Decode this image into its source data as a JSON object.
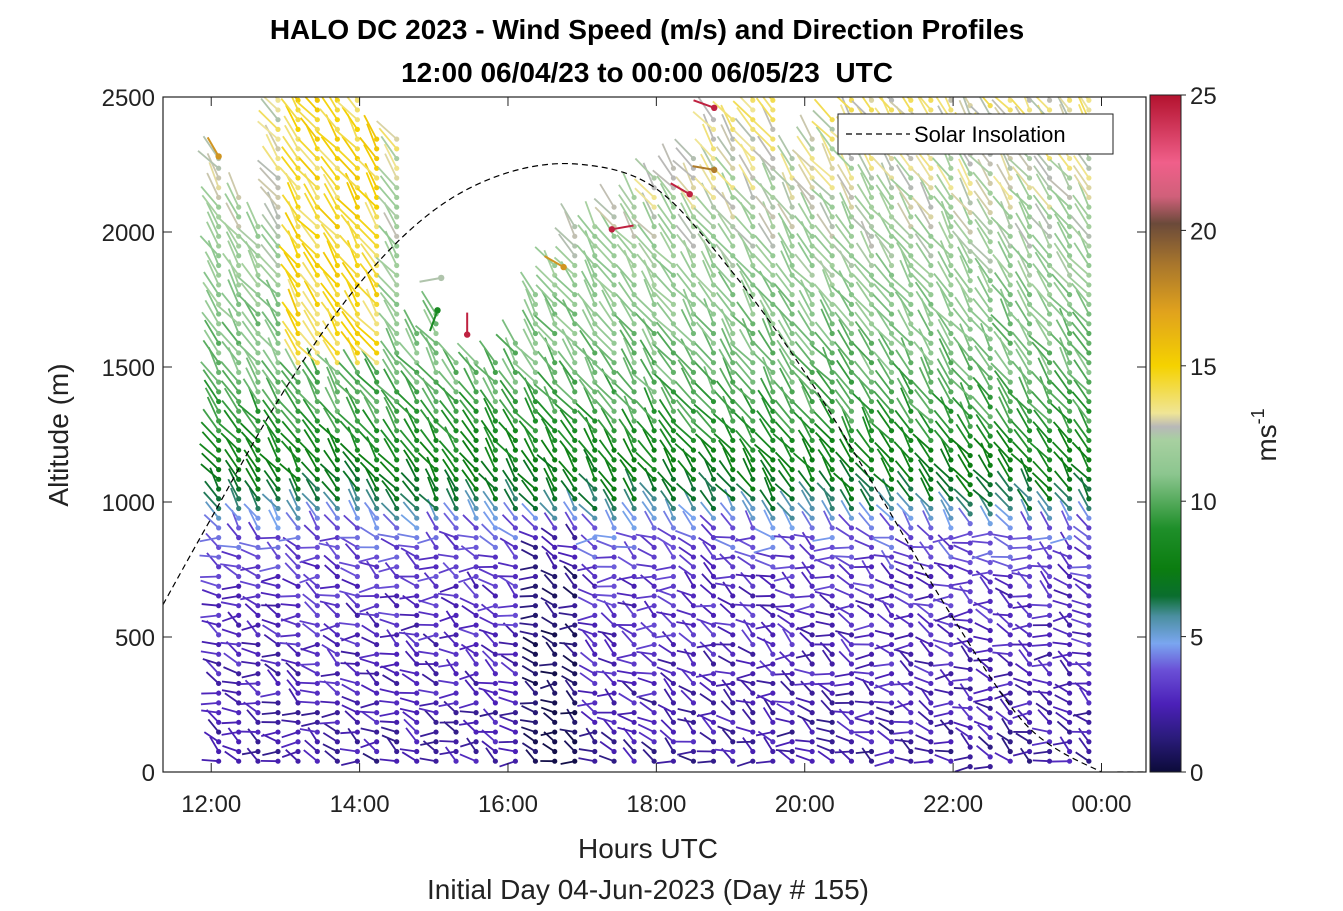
{
  "chart_data": {
    "type": "wind-barb-profile",
    "title": "HALO DC 2023 - Wind Speed (m/s) and Direction Profiles",
    "subtitle": "12:00 06/04/23 to 00:00 06/05/23  UTC",
    "xlabel": "Hours UTC",
    "xlabel2": "Initial Day 04-Jun-2023 (Day # 155)",
    "ylabel": "Altitude (m)",
    "x_tick_labels": [
      "12:00",
      "14:00",
      "16:00",
      "18:00",
      "20:00",
      "22:00",
      "00:00"
    ],
    "x_tick_hours": [
      12,
      14,
      16,
      18,
      20,
      22,
      24
    ],
    "xlim_hours": [
      11.35,
      24.6
    ],
    "y_ticks": [
      0,
      500,
      1000,
      1500,
      2000,
      2500
    ],
    "ylim": [
      0,
      2500
    ],
    "colorbar": {
      "label": "ms",
      "label_superscript": "-1",
      "ticks": [
        0,
        5,
        10,
        15,
        20,
        25
      ],
      "range": [
        0,
        25
      ]
    },
    "legend": {
      "entries": [
        "Solar Insolation"
      ],
      "position": "top-right"
    },
    "solar_insolation_curve": {
      "hours": [
        11.35,
        12,
        13,
        14,
        15,
        16,
        17,
        18,
        19,
        20,
        21,
        22,
        23,
        24,
        24.2,
        24.6
      ],
      "altitude_m": [
        620,
        940,
        1420,
        1810,
        2080,
        2220,
        2250,
        2160,
        1860,
        1480,
        1030,
        570,
        170,
        0,
        0,
        0
      ]
    },
    "profile_times_hours": [
      12.1,
      12.37,
      12.63,
      12.9,
      13.17,
      13.43,
      13.7,
      13.97,
      14.23,
      14.5,
      14.77,
      15.03,
      15.3,
      15.57,
      15.83,
      16.1,
      16.37,
      16.63,
      16.9,
      17.17,
      17.43,
      17.7,
      17.97,
      18.23,
      18.5,
      18.77,
      19.03,
      19.3,
      19.57,
      19.83,
      20.1,
      20.37,
      20.63,
      20.9,
      21.17,
      21.43,
      21.7,
      21.97,
      22.23,
      22.5,
      22.77,
      23.03,
      23.3,
      23.57,
      23.83
    ],
    "profile_top_m": [
      2290,
      2150,
      2020,
      2500,
      2500,
      2500,
      2500,
      2500,
      2350,
      2350,
      1650,
      1700,
      1550,
      1520,
      1550,
      1620,
      1780,
      1900,
      2050,
      2050,
      2100,
      2150,
      2200,
      2250,
      2300,
      2450,
      2450,
      2500,
      2500,
      2300,
      2350,
      2450,
      2500,
      2500,
      2500,
      2500,
      2500,
      2500,
      2500,
      2500,
      2500,
      2500,
      2500,
      2500,
      2500
    ],
    "profile_bottom_m": [
      40,
      40,
      40,
      40,
      40,
      40,
      40,
      40,
      40,
      40,
      40,
      40,
      40,
      40,
      40,
      40,
      40,
      40,
      40,
      40,
      40,
      40,
      40,
      40,
      40,
      40,
      40,
      40,
      40,
      40,
      40,
      40,
      40,
      40,
      40,
      40,
      40,
      40,
      20,
      20,
      40,
      40,
      40,
      40,
      40
    ],
    "speed_profile": {
      "altitudes_m": [
        0,
        300,
        700,
        900,
        1000,
        1150,
        1300,
        1500,
        1800,
        2100,
        2500
      ],
      "speed_ms": [
        2.0,
        2.5,
        3.0,
        4.0,
        6.5,
        8.0,
        9.5,
        10.5,
        11.5,
        12.5,
        13.5
      ]
    },
    "outliers": [
      {
        "hour": 12.1,
        "alt": 2280,
        "speed": 17.5,
        "dir_deg": 330
      },
      {
        "hour": 15.1,
        "alt": 1830,
        "speed": 12.5,
        "dir_deg": 260
      },
      {
        "hour": 15.05,
        "alt": 1710,
        "speed": 8.5,
        "dir_deg": 200
      },
      {
        "hour": 15.45,
        "alt": 1620,
        "speed": 24.5,
        "dir_deg": 0
      },
      {
        "hour": 16.75,
        "alt": 1870,
        "speed": 17.5,
        "dir_deg": 300
      },
      {
        "hour": 17.4,
        "alt": 2010,
        "speed": 24.5,
        "dir_deg": 80
      },
      {
        "hour": 18.45,
        "alt": 2140,
        "speed": 24.5,
        "dir_deg": 300
      },
      {
        "hour": 18.78,
        "alt": 2230,
        "speed": 18.5,
        "dir_deg": 280
      },
      {
        "hour": 18.78,
        "alt": 2460,
        "speed": 24.5,
        "dir_deg": 290
      }
    ]
  }
}
